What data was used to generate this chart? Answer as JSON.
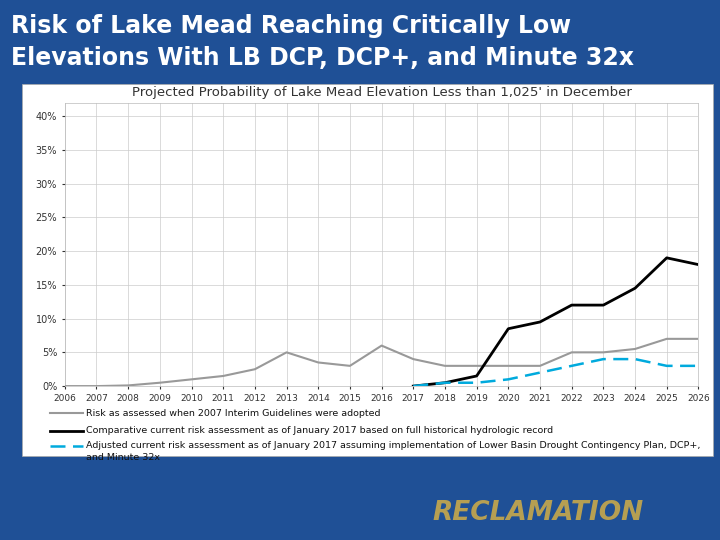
{
  "title_line1": "Risk of Lake Mead Reaching Critically Low",
  "title_line2": "Elevations With LB DCP, DCP+, and Minute 32x",
  "chart_title": "Projected Probability of Lake Mead Elevation Less than 1,025' in December",
  "background_slide": "#1F5096",
  "background_chart": "#FFFFFF",
  "title_color": "#FFFFFF",
  "title_fontsize": 17,
  "chart_title_fontsize": 9.5,
  "years": [
    2006,
    2007,
    2008,
    2009,
    2010,
    2011,
    2012,
    2013,
    2014,
    2015,
    2016,
    2017,
    2018,
    2019,
    2020,
    2021,
    2022,
    2023,
    2024,
    2025,
    2026
  ],
  "gray_line": [
    0.0,
    0.0,
    0.001,
    0.005,
    0.01,
    0.015,
    0.025,
    0.05,
    0.035,
    0.03,
    0.06,
    0.04,
    0.03,
    0.03,
    0.03,
    0.03,
    0.05,
    0.05,
    0.055,
    0.07,
    0.07
  ],
  "black_line_years": [
    2017,
    2018,
    2019,
    2020,
    2021,
    2022,
    2023,
    2024,
    2025,
    2026
  ],
  "black_line": [
    0.0,
    0.005,
    0.015,
    0.085,
    0.095,
    0.12,
    0.12,
    0.145,
    0.19,
    0.18
  ],
  "cyan_line_years": [
    2017,
    2018,
    2019,
    2020,
    2021,
    2022,
    2023,
    2024,
    2025,
    2026
  ],
  "cyan_line": [
    0.0,
    0.005,
    0.005,
    0.01,
    0.02,
    0.03,
    0.04,
    0.04,
    0.03,
    0.03
  ],
  "gray_color": "#999999",
  "black_color": "#000000",
  "cyan_color": "#00AADD",
  "ylim": [
    0,
    0.42
  ],
  "yticks": [
    0,
    0.05,
    0.1,
    0.15,
    0.2,
    0.25,
    0.3,
    0.35,
    0.4
  ],
  "legend1": "Risk as assessed when 2007 Interim Guidelines were adopted",
  "legend2": "Comparative current risk assessment as of January 2017 based on full historical hydrologic record",
  "legend3_line1": "Adjusted current risk assessment as of January 2017 assuming implementation of Lower Basin Drought Contingency Plan, DCP+,",
  "legend3_line2": "and Minute 32x",
  "reclamation_color": "#C8A84B"
}
